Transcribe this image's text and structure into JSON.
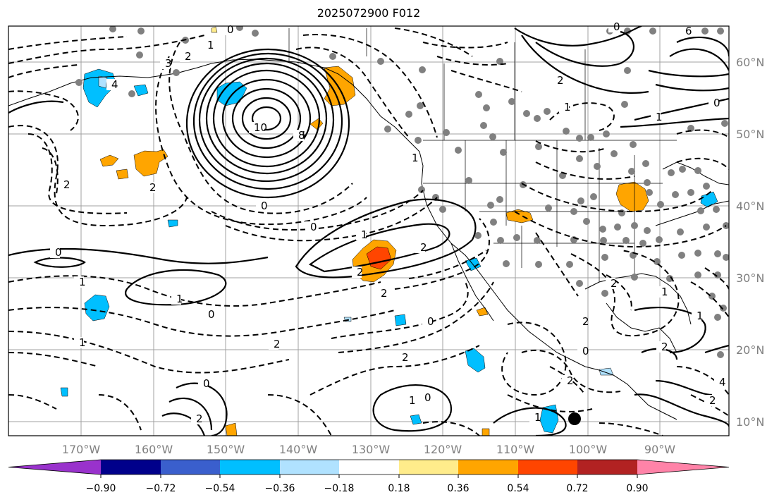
{
  "title": "2025072900 F012",
  "map": {
    "lat_labels": [
      "60°N",
      "50°N",
      "40°N",
      "30°N",
      "20°N",
      "10°N"
    ],
    "lon_labels": [
      "170°W",
      "160°W",
      "150°W",
      "140°W",
      "130°W",
      "120°W",
      "110°W",
      "100°W",
      "90°W"
    ]
  },
  "colorbar": {
    "ticks": [
      "−0.90",
      "−0.72",
      "−0.54",
      "−0.36",
      "−0.18",
      "0.18",
      "0.36",
      "0.54",
      "0.72",
      "0.90"
    ],
    "colors": [
      "#9932cc",
      "#00008b",
      "#3a5fcd",
      "#00bfff",
      "#b0e2ff",
      "#ffffff",
      "#ffec8b",
      "#ffa500",
      "#ff4500",
      "#b22222",
      "#ff83a8"
    ]
  },
  "contour_labels": [
    "0",
    "1",
    "2",
    "3",
    "4",
    "6",
    "8",
    "10",
    "0",
    "1",
    "2",
    "2",
    "2",
    "1",
    "0",
    "2",
    "0",
    "1",
    "1",
    "0",
    "2",
    "2",
    "0",
    "0",
    "2",
    "1",
    "1",
    "2",
    "1",
    "2",
    "2",
    "6",
    "2",
    "1",
    "0",
    "0",
    "2",
    "4",
    "2",
    "0",
    "1",
    "0",
    "1",
    "1",
    "2"
  ],
  "marker": "filled-circle"
}
